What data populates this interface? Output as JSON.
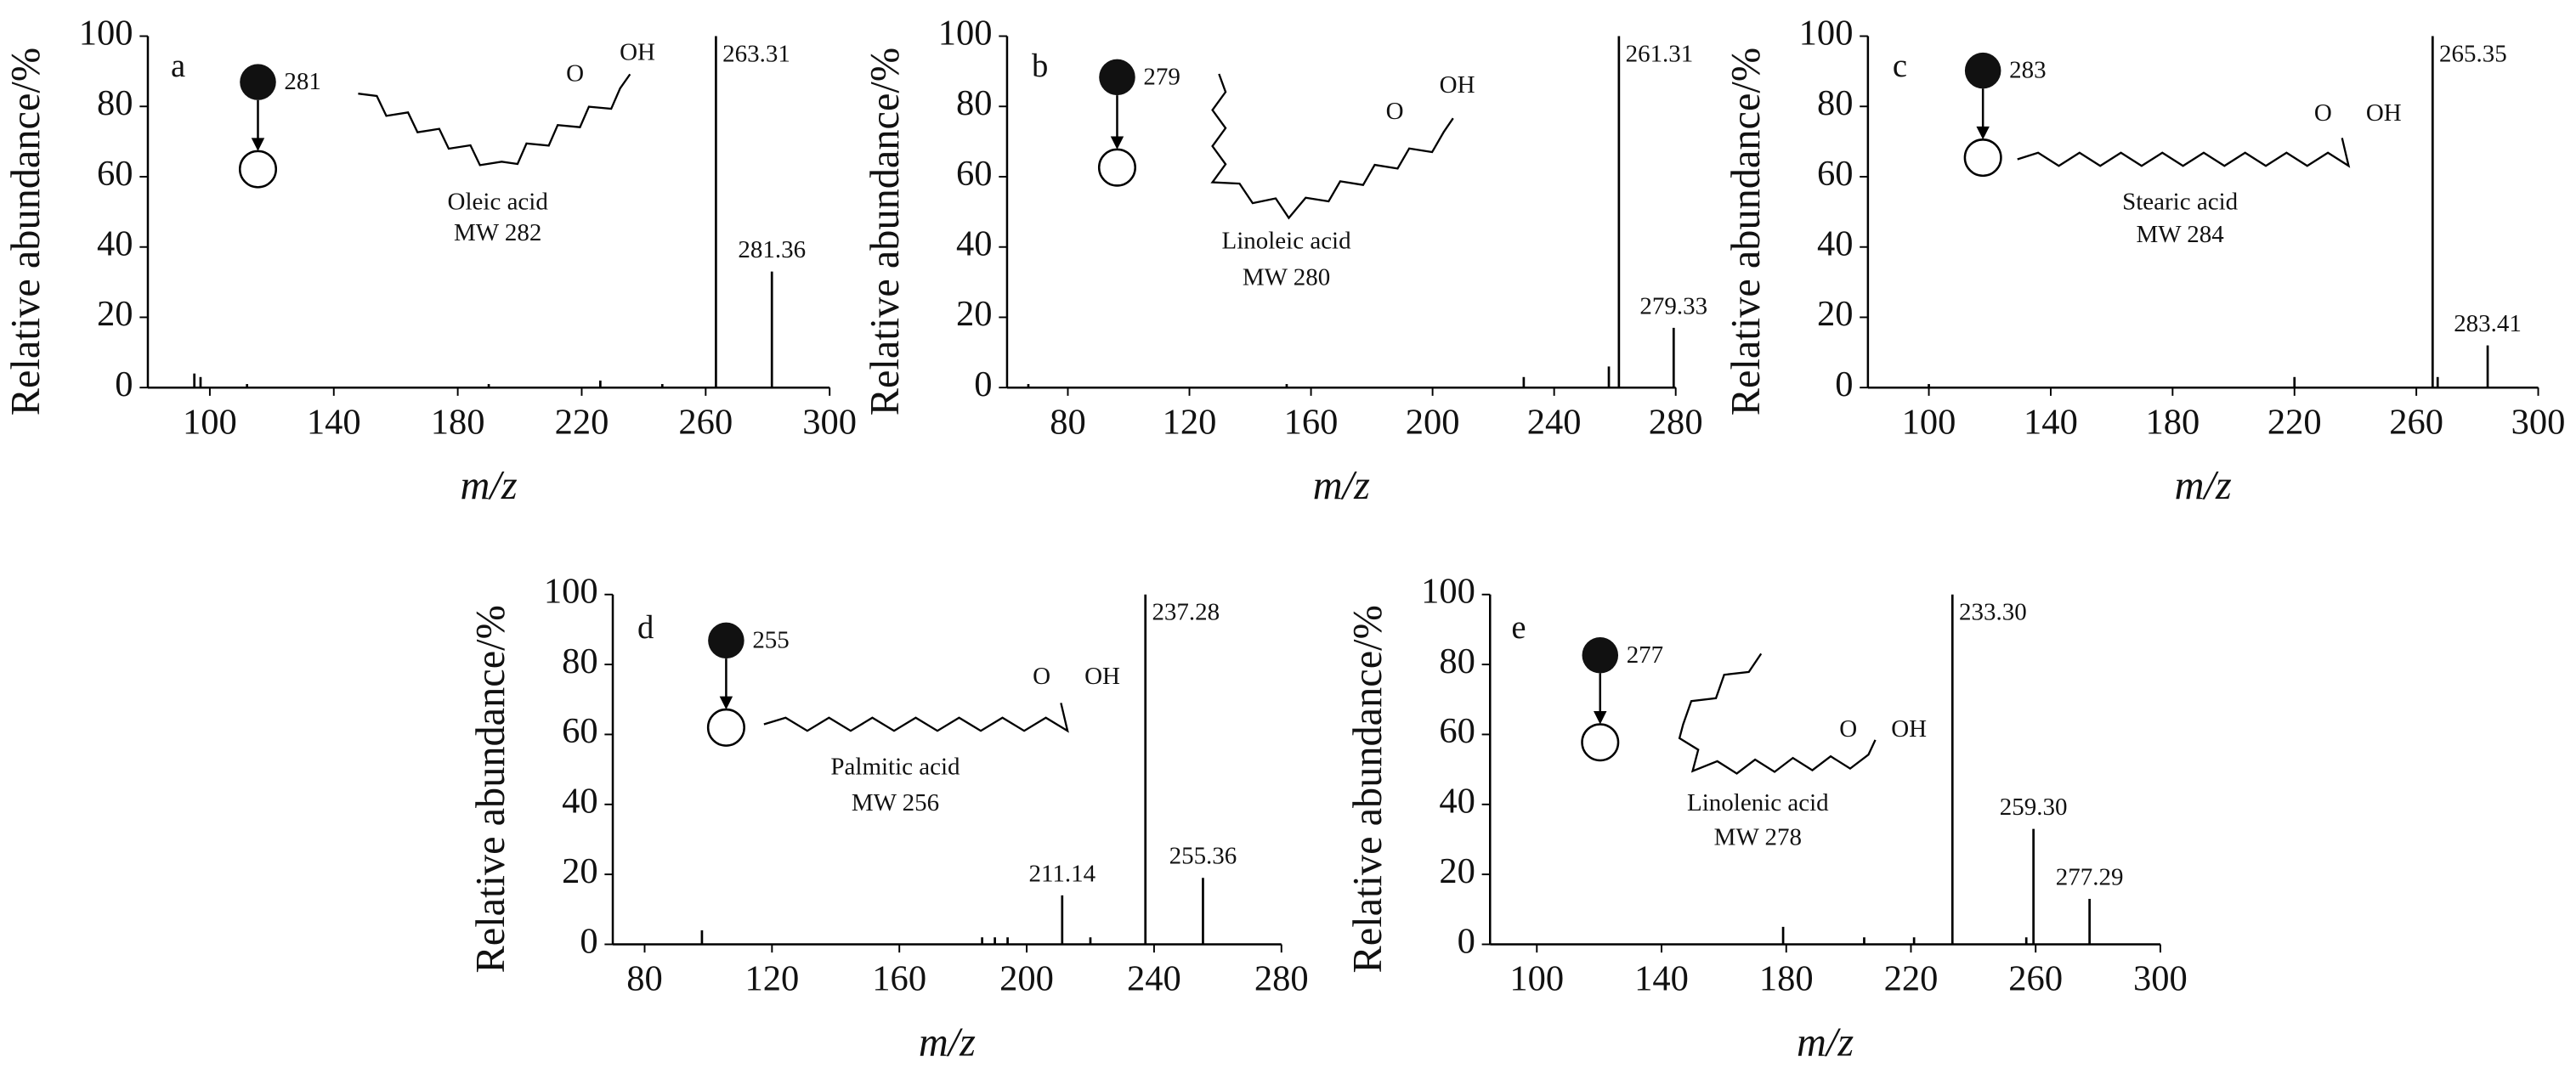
{
  "chart_data": [
    {
      "type": "bar",
      "panel_label": "a",
      "xlabel": "m/z",
      "ylabel": "Relative abundance/%",
      "xlim": [
        80,
        300
      ],
      "xticks": [
        100,
        140,
        180,
        220,
        260,
        300
      ],
      "ylim": [
        0,
        100
      ],
      "yticks": [
        0,
        20,
        40,
        60,
        80,
        100
      ],
      "precursor": "281",
      "compound": "Oleic acid",
      "mw": "MW 282",
      "carbonyl_o": "O",
      "hydroxyl": "OH",
      "color": "#000000",
      "labeled_peaks": {
        "x": [
          263.31,
          281.36
        ],
        "values": [
          100,
          33
        ],
        "x_labels": [
          "263.31",
          "281.36"
        ]
      },
      "minor_peaks": {
        "x": [
          95,
          97,
          112,
          190,
          226,
          246
        ],
        "values": [
          4,
          3,
          1,
          1,
          2,
          1
        ]
      }
    },
    {
      "type": "bar",
      "panel_label": "b",
      "xlabel": "m/z",
      "ylabel": "Relative abundance/%",
      "xlim": [
        60,
        280
      ],
      "xticks": [
        80,
        120,
        160,
        200,
        240,
        280
      ],
      "ylim": [
        0,
        100
      ],
      "yticks": [
        0,
        20,
        40,
        60,
        80,
        100
      ],
      "precursor": "279",
      "compound": "Linoleic acid",
      "mw": "MW 280",
      "carbonyl_o": "O",
      "hydroxyl": "OH",
      "color": "#000000",
      "labeled_peaks": {
        "x": [
          261.31,
          279.33
        ],
        "values": [
          100,
          17
        ],
        "x_labels": [
          "261.31",
          "279.33"
        ]
      },
      "minor_peaks": {
        "x": [
          67,
          152,
          230,
          258
        ],
        "values": [
          1,
          1,
          3,
          6
        ]
      }
    },
    {
      "type": "bar",
      "panel_label": "c",
      "xlabel": "m/z",
      "ylabel": "Relative abundance/%",
      "xlim": [
        80,
        300
      ],
      "xticks": [
        100,
        140,
        180,
        220,
        260,
        300
      ],
      "ylim": [
        0,
        100
      ],
      "yticks": [
        0,
        20,
        40,
        60,
        80,
        100
      ],
      "precursor": "283",
      "compound": "Stearic acid",
      "mw": "MW 284",
      "carbonyl_o": "O",
      "hydroxyl": "OH",
      "color": "#000000",
      "labeled_peaks": {
        "x": [
          265.35,
          283.41
        ],
        "values": [
          100,
          12
        ],
        "x_labels": [
          "265.35",
          "283.41"
        ]
      },
      "minor_peaks": {
        "x": [
          100,
          220,
          267
        ],
        "values": [
          1,
          3,
          3
        ]
      }
    },
    {
      "type": "bar",
      "panel_label": "d",
      "xlabel": "m/z",
      "ylabel": "Relative abundance/%",
      "xlim": [
        70,
        280
      ],
      "xticks": [
        80,
        120,
        160,
        200,
        240,
        280
      ],
      "ylim": [
        0,
        100
      ],
      "yticks": [
        0,
        20,
        40,
        60,
        80,
        100
      ],
      "precursor": "255",
      "compound": "Palmitic acid",
      "mw": "MW 256",
      "carbonyl_o": "O",
      "hydroxyl": "OH",
      "color": "#000000",
      "labeled_peaks": {
        "x": [
          237.28,
          255.36,
          211.14
        ],
        "values": [
          100,
          19,
          14
        ],
        "x_labels": [
          "237.28",
          "255.36",
          "211.14"
        ]
      },
      "minor_peaks": {
        "x": [
          98,
          186,
          190,
          194,
          220
        ],
        "values": [
          4,
          2,
          2,
          2,
          2
        ]
      }
    },
    {
      "type": "bar",
      "panel_label": "e",
      "xlabel": "m/z",
      "ylabel": "Relative abundance/%",
      "xlim": [
        85,
        300
      ],
      "xticks": [
        100,
        140,
        180,
        220,
        260,
        300
      ],
      "ylim": [
        0,
        100
      ],
      "yticks": [
        0,
        20,
        40,
        60,
        80,
        100
      ],
      "precursor": "277",
      "compound": "Linolenic acid",
      "mw": "MW 278",
      "carbonyl_o": "O",
      "hydroxyl": "OH",
      "color": "#000000",
      "labeled_peaks": {
        "x": [
          233.3,
          259.3,
          277.29
        ],
        "values": [
          100,
          33,
          13
        ],
        "x_labels": [
          "233.30",
          "259.30",
          "277.29"
        ]
      },
      "minor_peaks": {
        "x": [
          179,
          205,
          221,
          257
        ],
        "values": [
          5,
          2,
          2,
          2
        ]
      }
    }
  ]
}
